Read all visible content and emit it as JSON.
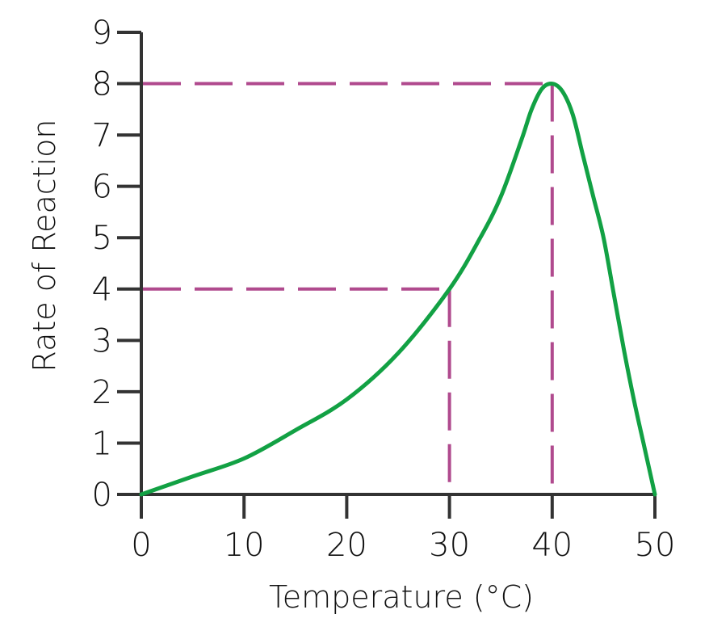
{
  "chart_data": {
    "type": "line",
    "title": "",
    "xlabel": "Temperature (°C)",
    "ylabel": "Rate of Reaction",
    "xlim": [
      0,
      50
    ],
    "ylim": [
      0,
      9
    ],
    "x_ticks": [
      0,
      10,
      20,
      30,
      40,
      50
    ],
    "y_ticks": [
      0,
      1,
      2,
      3,
      4,
      5,
      6,
      7,
      8,
      9
    ],
    "grid": false,
    "legend": null,
    "series": [
      {
        "name": "Rate of Reaction",
        "color": "#12a144",
        "x": [
          0,
          5,
          10,
          15,
          20,
          25,
          30,
          33,
          35,
          37,
          38,
          39,
          40,
          41,
          42,
          43,
          44,
          45,
          46,
          47,
          48,
          49,
          50
        ],
        "y": [
          0,
          0.35,
          0.7,
          1.25,
          1.85,
          2.75,
          4.0,
          5.0,
          5.8,
          6.9,
          7.5,
          7.9,
          8.0,
          7.85,
          7.4,
          6.6,
          5.8,
          5.0,
          3.9,
          2.8,
          1.8,
          0.9,
          0
        ]
      }
    ],
    "annotations": [
      {
        "type": "dashed-guide",
        "point": [
          30,
          4
        ],
        "color": "#b04a8e",
        "description": "Dashed lines from (30,4) to both axes"
      },
      {
        "type": "dashed-guide",
        "point": [
          40,
          8
        ],
        "color": "#b04a8e",
        "description": "Dashed lines from (40,8) to both axes (optimum temperature)"
      }
    ]
  },
  "labels": {
    "x_axis_title": "Temperature (°C)",
    "y_axis_title": "Rate of Reaction",
    "x_ticks": [
      "0",
      "10",
      "20",
      "30",
      "40",
      "50"
    ],
    "y_ticks": [
      "0",
      "1",
      "2",
      "3",
      "4",
      "5",
      "6",
      "7",
      "8",
      "9"
    ]
  },
  "colors": {
    "curve": "#12a144",
    "guides": "#b04a8e",
    "axis": "#333333"
  }
}
